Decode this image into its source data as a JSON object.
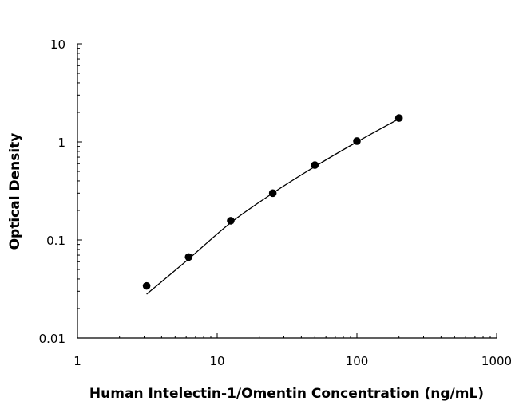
{
  "chart_data": {
    "type": "scatter",
    "title": "",
    "xlabel": "Human Intelectin-1/Omentin Concentration (ng/mL)",
    "ylabel": "Optical Density",
    "xscale": "log",
    "yscale": "log",
    "xlim": [
      1,
      1000
    ],
    "ylim": [
      0.01,
      10
    ],
    "xticks": [
      1,
      10,
      100,
      1000
    ],
    "xtick_labels": [
      "1",
      "10",
      "100",
      "1000"
    ],
    "yticks": [
      0.01,
      0.1,
      1,
      10
    ],
    "ytick_labels": [
      "0.01",
      "0.1",
      "1",
      "10"
    ],
    "grid": false,
    "series": [
      {
        "x": [
          3.125,
          6.25,
          12.5,
          25,
          50,
          100,
          200
        ],
        "y": [
          0.034,
          0.067,
          0.157,
          0.3,
          0.58,
          1.02,
          1.75
        ],
        "marker": "circle",
        "color": "#000000"
      }
    ],
    "fit_curve": {
      "x": [
        3.125,
        6.25,
        12.5,
        25,
        50,
        100,
        200
      ],
      "y": [
        0.028,
        0.064,
        0.15,
        0.3,
        0.56,
        1.0,
        1.72
      ],
      "color": "#000000"
    }
  }
}
